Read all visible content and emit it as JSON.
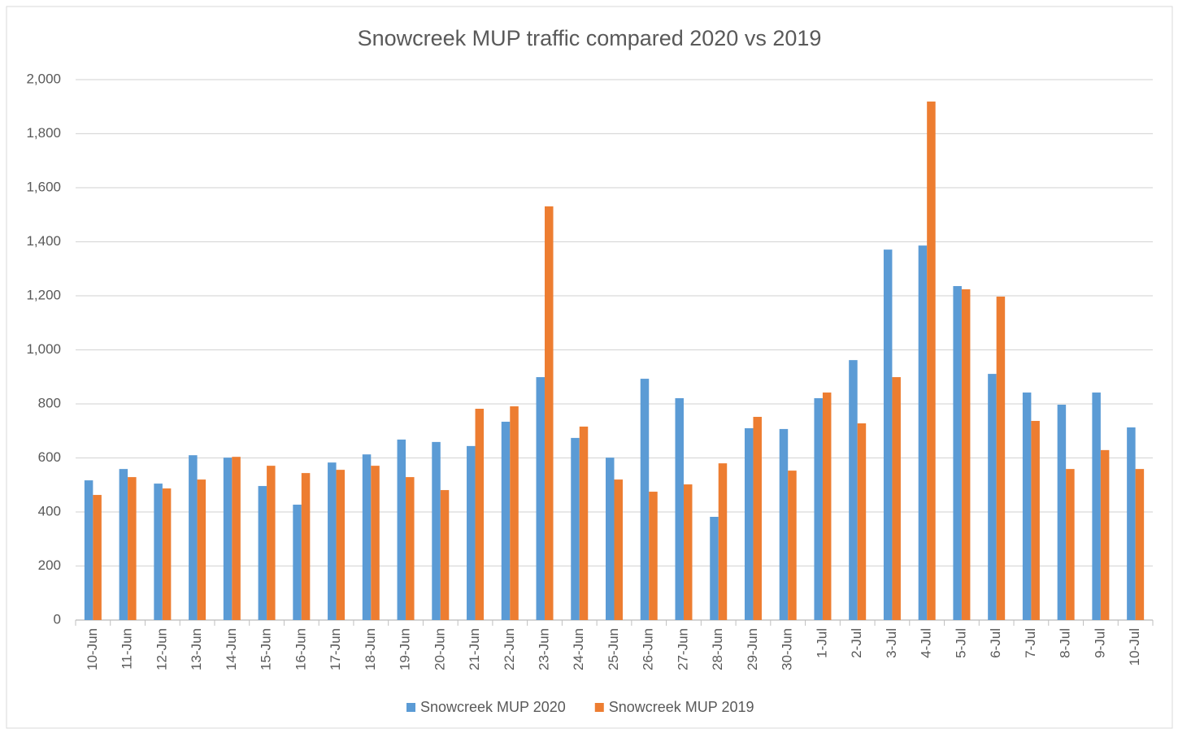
{
  "chart_data": {
    "type": "bar",
    "title": "Snowcreek MUP traffic compared 2020 vs 2019",
    "categories": [
      "10-Jun",
      "11-Jun",
      "12-Jun",
      "13-Jun",
      "14-Jun",
      "15-Jun",
      "16-Jun",
      "17-Jun",
      "18-Jun",
      "19-Jun",
      "20-Jun",
      "21-Jun",
      "22-Jun",
      "23-Jun",
      "24-Jun",
      "25-Jun",
      "26-Jun",
      "27-Jun",
      "28-Jun",
      "29-Jun",
      "30-Jun",
      "1-Jul",
      "2-Jul",
      "3-Jul",
      "4-Jul",
      "5-Jul",
      "6-Jul",
      "7-Jul",
      "8-Jul",
      "9-Jul",
      "10-Jul"
    ],
    "series": [
      {
        "name": "Snowcreek MUP 2020",
        "color": "#5b9bd5",
        "values": [
          517,
          559,
          505,
          610,
          601,
          496,
          427,
          583,
          613,
          668,
          659,
          644,
          734,
          899,
          674,
          601,
          893,
          821,
          382,
          710,
          707,
          821,
          962,
          1371,
          1386,
          1236,
          911,
          842,
          797,
          842,
          713
        ]
      },
      {
        "name": "Snowcreek MUP 2019",
        "color": "#ed7d31",
        "values": [
          463,
          529,
          487,
          520,
          604,
          571,
          544,
          556,
          571,
          529,
          481,
          782,
          791,
          1531,
          716,
          520,
          475,
          502,
          580,
          752,
          553,
          842,
          728,
          899,
          1919,
          1224,
          1197,
          737,
          559,
          629,
          559
        ]
      }
    ],
    "ylim": [
      0,
      2000
    ],
    "yticks": [
      0,
      200,
      400,
      600,
      800,
      {
        "value": 1000,
        "label": "1,000"
      },
      {
        "value": 1200,
        "label": "1,200"
      },
      {
        "value": 1400,
        "label": "1,400"
      },
      {
        "value": 1600,
        "label": "1,600"
      },
      {
        "value": 1800,
        "label": "1,800"
      },
      {
        "value": 2000,
        "label": "2,000"
      }
    ],
    "grid": true,
    "legend": "bottom"
  }
}
